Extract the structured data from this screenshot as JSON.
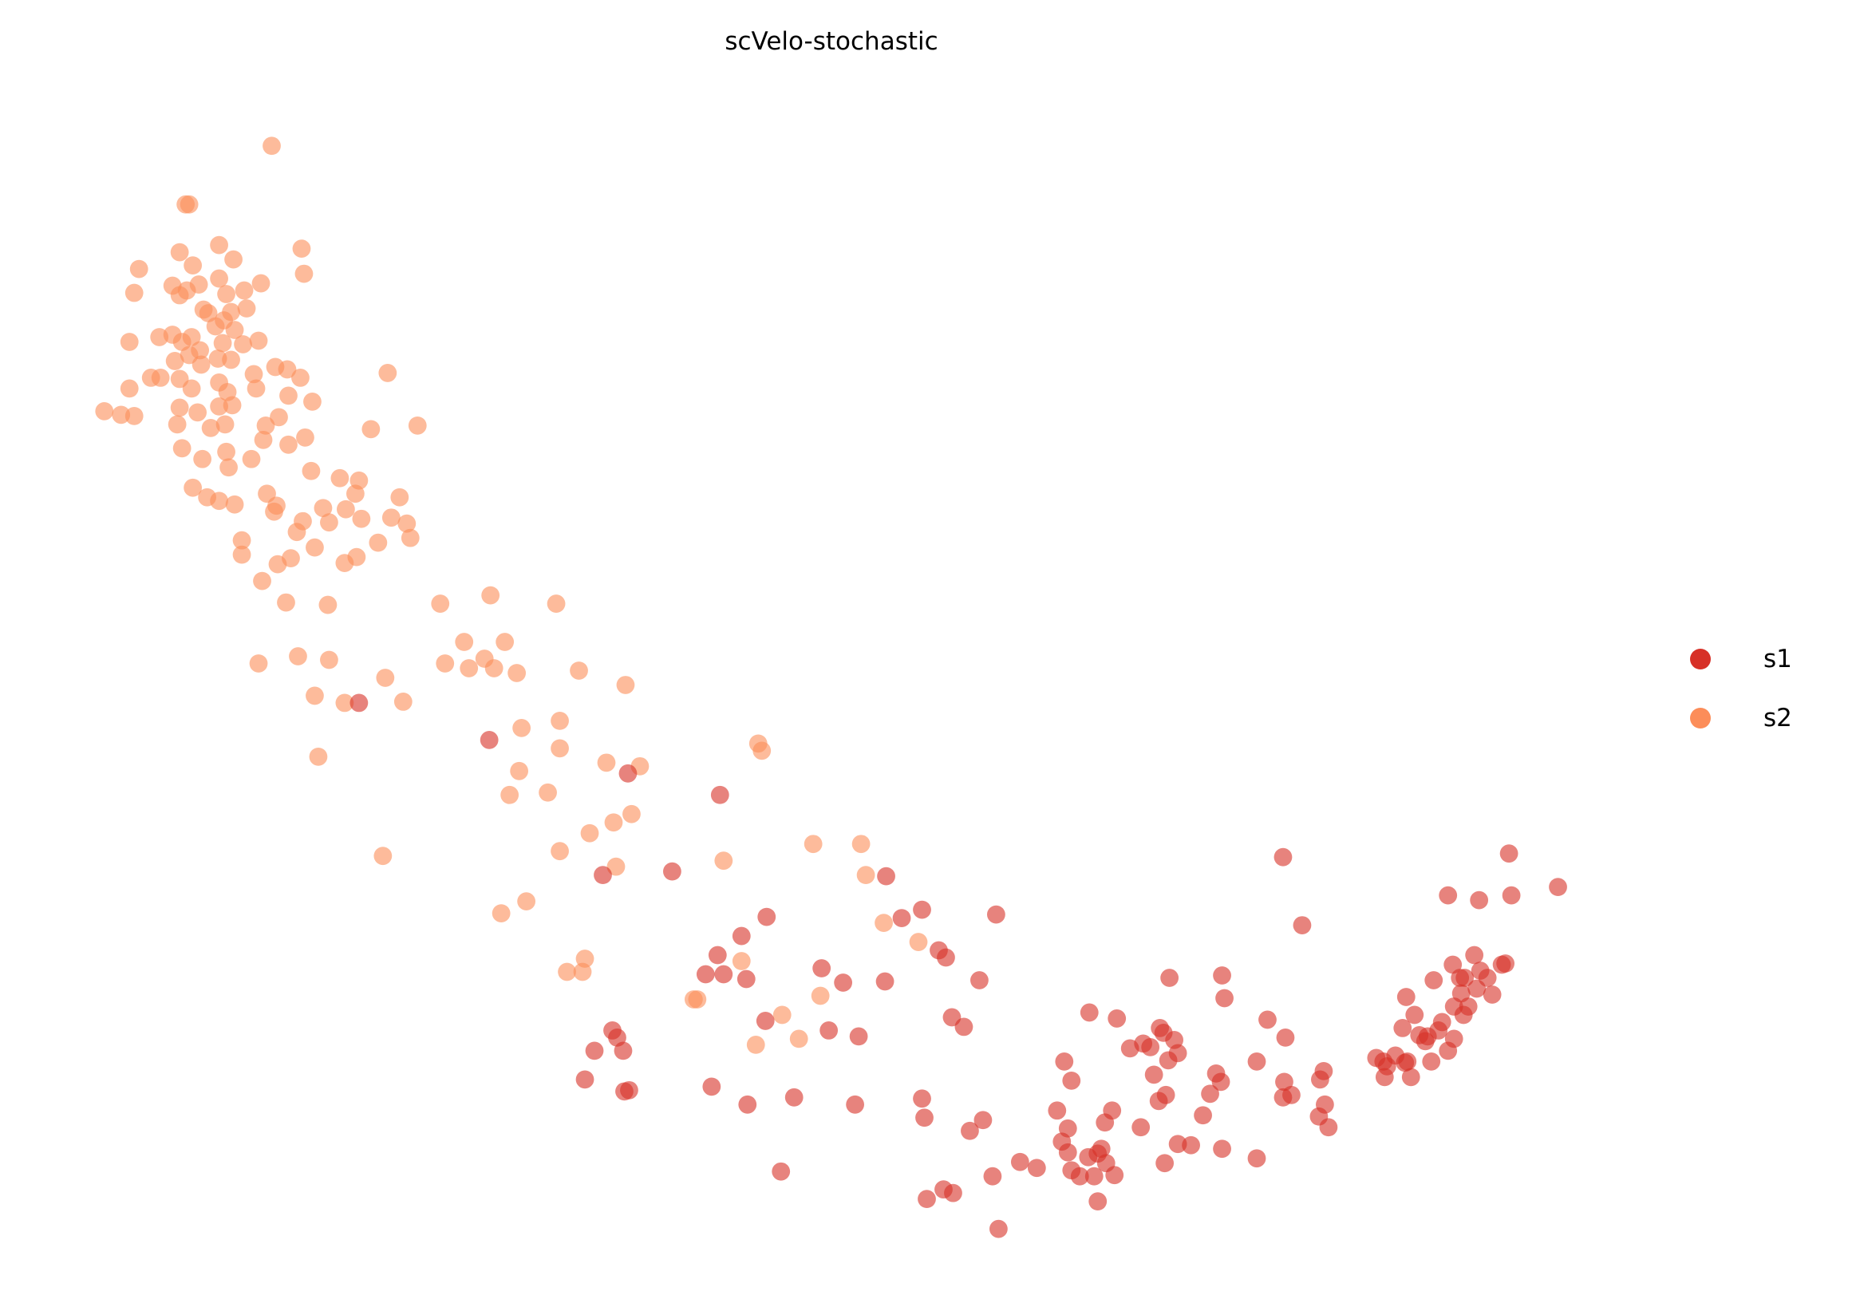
{
  "chart_data": {
    "type": "scatter",
    "title": "scVelo-stochastic",
    "xlabel": "",
    "ylabel": "",
    "grid": false,
    "axes_visible": false,
    "xlim": [
      0,
      15.52
    ],
    "ylim": [
      -10.9,
      0
    ],
    "legend": {
      "placement": "right",
      "entries": [
        "s1",
        "s2"
      ]
    },
    "series": [
      {
        "name": "s1",
        "color": "#d73027",
        "points": [
          [
            3.0,
            -5.88
          ],
          [
            4.09,
            -6.19
          ],
          [
            5.25,
            -6.47
          ],
          [
            6.02,
            -6.65
          ],
          [
            5.04,
            -7.32
          ],
          [
            5.62,
            -7.29
          ],
          [
            7.41,
            -7.33
          ],
          [
            7.54,
            -7.68
          ],
          [
            7.71,
            -7.61
          ],
          [
            8.33,
            -7.65
          ],
          [
            10.73,
            -7.17
          ],
          [
            10.89,
            -7.74
          ],
          [
            12.11,
            -7.49
          ],
          [
            12.37,
            -7.53
          ],
          [
            12.62,
            -7.14
          ],
          [
            12.64,
            -7.49
          ],
          [
            13.03,
            -7.42
          ],
          [
            6.2,
            -7.83
          ],
          [
            6.41,
            -7.67
          ],
          [
            6.0,
            -7.99
          ],
          [
            5.9,
            -8.15
          ],
          [
            6.05,
            -8.15
          ],
          [
            6.24,
            -8.19
          ],
          [
            6.87,
            -8.1
          ],
          [
            7.05,
            -8.22
          ],
          [
            7.4,
            -8.21
          ],
          [
            7.85,
            -7.95
          ],
          [
            7.91,
            -8.01
          ],
          [
            8.19,
            -8.2
          ],
          [
            6.4,
            -8.54
          ],
          [
            6.93,
            -8.62
          ],
          [
            7.18,
            -8.67
          ],
          [
            7.96,
            -8.51
          ],
          [
            8.06,
            -8.59
          ],
          [
            5.12,
            -8.62
          ],
          [
            5.16,
            -8.68
          ],
          [
            4.97,
            -8.79
          ],
          [
            5.21,
            -8.79
          ],
          [
            4.89,
            -9.03
          ],
          [
            5.22,
            -9.13
          ],
          [
            5.26,
            -9.12
          ],
          [
            5.95,
            -9.09
          ],
          [
            6.25,
            -9.24
          ],
          [
            6.64,
            -9.18
          ],
          [
            7.15,
            -9.24
          ],
          [
            7.71,
            -9.19
          ],
          [
            7.73,
            -9.35
          ],
          [
            8.11,
            -9.46
          ],
          [
            8.22,
            -9.37
          ],
          [
            6.53,
            -9.8
          ],
          [
            7.75,
            -10.03
          ],
          [
            7.89,
            -9.95
          ],
          [
            7.97,
            -9.98
          ],
          [
            8.3,
            -9.84
          ],
          [
            8.35,
            -10.28
          ],
          [
            8.53,
            -9.72
          ],
          [
            8.67,
            -9.77
          ],
          [
            8.84,
            -9.29
          ],
          [
            8.93,
            -9.44
          ],
          [
            8.9,
            -8.88
          ],
          [
            8.96,
            -9.04
          ],
          [
            8.88,
            -9.55
          ],
          [
            8.93,
            -9.64
          ],
          [
            8.96,
            -9.79
          ],
          [
            9.03,
            -9.84
          ],
          [
            9.1,
            -9.68
          ],
          [
            9.18,
            -9.65
          ],
          [
            9.21,
            -9.61
          ],
          [
            9.15,
            -9.84
          ],
          [
            9.25,
            -9.73
          ],
          [
            9.32,
            -9.83
          ],
          [
            9.18,
            -10.05
          ],
          [
            9.24,
            -9.39
          ],
          [
            9.3,
            -9.29
          ],
          [
            9.54,
            -9.43
          ],
          [
            9.11,
            -8.47
          ],
          [
            9.34,
            -8.52
          ],
          [
            9.45,
            -8.77
          ],
          [
            9.56,
            -8.73
          ],
          [
            9.62,
            -8.76
          ],
          [
            9.7,
            -8.6
          ],
          [
            9.73,
            -8.64
          ],
          [
            9.82,
            -8.7
          ],
          [
            9.77,
            -8.87
          ],
          [
            9.85,
            -8.81
          ],
          [
            9.65,
            -8.99
          ],
          [
            9.69,
            -9.21
          ],
          [
            9.75,
            -9.16
          ],
          [
            9.74,
            -9.73
          ],
          [
            9.85,
            -9.57
          ],
          [
            9.96,
            -9.58
          ],
          [
            10.06,
            -9.33
          ],
          [
            10.22,
            -9.61
          ],
          [
            9.78,
            -8.18
          ],
          [
            10.22,
            -8.16
          ],
          [
            10.24,
            -8.35
          ],
          [
            10.12,
            -9.15
          ],
          [
            10.17,
            -8.98
          ],
          [
            10.21,
            -9.05
          ],
          [
            10.51,
            -8.88
          ],
          [
            10.6,
            -8.53
          ],
          [
            10.75,
            -8.68
          ],
          [
            10.74,
            -9.05
          ],
          [
            10.73,
            -9.18
          ],
          [
            10.8,
            -9.16
          ],
          [
            11.04,
            -9.03
          ],
          [
            11.07,
            -8.96
          ],
          [
            11.03,
            -9.34
          ],
          [
            11.08,
            -9.24
          ],
          [
            11.11,
            -9.43
          ],
          [
            10.51,
            -9.69
          ],
          [
            11.51,
            -8.85
          ],
          [
            11.58,
            -9.01
          ],
          [
            11.6,
            -8.92
          ],
          [
            11.67,
            -8.83
          ],
          [
            11.75,
            -8.89
          ],
          [
            11.8,
            -9.01
          ],
          [
            11.77,
            -8.88
          ],
          [
            11.57,
            -8.88
          ],
          [
            11.73,
            -8.6
          ],
          [
            11.76,
            -8.34
          ],
          [
            11.83,
            -8.49
          ],
          [
            11.87,
            -8.66
          ],
          [
            11.94,
            -8.67
          ],
          [
            11.92,
            -8.71
          ],
          [
            11.97,
            -8.88
          ],
          [
            11.99,
            -8.2
          ],
          [
            12.03,
            -8.62
          ],
          [
            12.06,
            -8.55
          ],
          [
            12.11,
            -8.79
          ],
          [
            12.16,
            -8.69
          ],
          [
            12.16,
            -8.42
          ],
          [
            12.21,
            -8.18
          ],
          [
            12.24,
            -8.49
          ],
          [
            12.28,
            -8.42
          ],
          [
            12.25,
            -8.18
          ],
          [
            12.35,
            -8.27
          ],
          [
            12.15,
            -8.07
          ],
          [
            12.33,
            -7.99
          ],
          [
            12.38,
            -8.12
          ],
          [
            12.44,
            -8.18
          ],
          [
            12.48,
            -8.32
          ],
          [
            12.56,
            -8.07
          ],
          [
            12.59,
            -8.06
          ],
          [
            12.22,
            -8.31
          ]
        ]
      },
      {
        "name": "s2",
        "color": "#fc8d59",
        "points": [
          [
            2.27,
            -1.22
          ],
          [
            1.55,
            -1.71
          ],
          [
            1.58,
            -1.71
          ],
          [
            2.52,
            -2.08
          ],
          [
            2.54,
            -2.29
          ],
          [
            1.83,
            -2.05
          ],
          [
            1.95,
            -2.17
          ],
          [
            1.5,
            -2.11
          ],
          [
            1.16,
            -2.25
          ],
          [
            1.61,
            -2.22
          ],
          [
            1.12,
            -2.45
          ],
          [
            1.44,
            -2.39
          ],
          [
            1.5,
            -2.47
          ],
          [
            1.56,
            -2.43
          ],
          [
            1.66,
            -2.38
          ],
          [
            1.83,
            -2.33
          ],
          [
            1.89,
            -2.46
          ],
          [
            2.04,
            -2.43
          ],
          [
            2.18,
            -2.37
          ],
          [
            1.7,
            -2.59
          ],
          [
            1.74,
            -2.62
          ],
          [
            1.87,
            -2.68
          ],
          [
            1.93,
            -2.61
          ],
          [
            2.06,
            -2.58
          ],
          [
            1.8,
            -2.73
          ],
          [
            1.08,
            -2.86
          ],
          [
            1.33,
            -2.82
          ],
          [
            1.44,
            -2.8
          ],
          [
            1.52,
            -2.86
          ],
          [
            1.6,
            -2.82
          ],
          [
            1.67,
            -2.93
          ],
          [
            1.86,
            -2.87
          ],
          [
            1.96,
            -2.76
          ],
          [
            2.03,
            -2.88
          ],
          [
            2.16,
            -2.85
          ],
          [
            1.46,
            -3.02
          ],
          [
            1.58,
            -2.97
          ],
          [
            1.68,
            -3.05
          ],
          [
            1.82,
            -3.0
          ],
          [
            1.93,
            -3.01
          ],
          [
            2.12,
            -3.13
          ],
          [
            2.3,
            -3.07
          ],
          [
            2.4,
            -3.09
          ],
          [
            2.51,
            -3.16
          ],
          [
            1.26,
            -3.16
          ],
          [
            1.34,
            -3.16
          ],
          [
            1.08,
            -3.25
          ],
          [
            1.5,
            -3.17
          ],
          [
            1.6,
            -3.25
          ],
          [
            1.83,
            -3.2
          ],
          [
            1.9,
            -3.28
          ],
          [
            2.14,
            -3.25
          ],
          [
            0.87,
            -3.44
          ],
          [
            1.01,
            -3.47
          ],
          [
            1.12,
            -3.48
          ],
          [
            1.5,
            -3.41
          ],
          [
            1.65,
            -3.45
          ],
          [
            1.83,
            -3.4
          ],
          [
            1.94,
            -3.39
          ],
          [
            2.41,
            -3.31
          ],
          [
            2.61,
            -3.36
          ],
          [
            3.24,
            -3.12
          ],
          [
            1.48,
            -3.55
          ],
          [
            1.76,
            -3.58
          ],
          [
            1.88,
            -3.55
          ],
          [
            2.33,
            -3.49
          ],
          [
            2.22,
            -3.56
          ],
          [
            3.1,
            -3.59
          ],
          [
            3.49,
            -3.56
          ],
          [
            1.52,
            -3.75
          ],
          [
            1.69,
            -3.84
          ],
          [
            1.89,
            -3.78
          ],
          [
            2.1,
            -3.84
          ],
          [
            2.2,
            -3.68
          ],
          [
            2.41,
            -3.72
          ],
          [
            2.55,
            -3.66
          ],
          [
            1.91,
            -3.91
          ],
          [
            1.61,
            -4.08
          ],
          [
            1.73,
            -4.16
          ],
          [
            1.83,
            -4.19
          ],
          [
            1.96,
            -4.22
          ],
          [
            2.23,
            -4.13
          ],
          [
            2.31,
            -4.23
          ],
          [
            2.29,
            -4.28
          ],
          [
            2.6,
            -3.94
          ],
          [
            2.84,
            -4.0
          ],
          [
            3.0,
            -4.02
          ],
          [
            2.97,
            -4.13
          ],
          [
            3.34,
            -4.16
          ],
          [
            3.27,
            -4.33
          ],
          [
            3.4,
            -4.38
          ],
          [
            3.43,
            -4.5
          ],
          [
            2.48,
            -4.45
          ],
          [
            2.53,
            -4.36
          ],
          [
            2.7,
            -4.25
          ],
          [
            2.75,
            -4.37
          ],
          [
            2.89,
            -4.26
          ],
          [
            3.02,
            -4.34
          ],
          [
            2.02,
            -4.52
          ],
          [
            2.02,
            -4.64
          ],
          [
            2.43,
            -4.67
          ],
          [
            2.63,
            -4.58
          ],
          [
            2.32,
            -4.72
          ],
          [
            2.98,
            -4.66
          ],
          [
            2.88,
            -4.71
          ],
          [
            3.16,
            -4.54
          ],
          [
            2.19,
            -4.86
          ],
          [
            2.39,
            -5.04
          ],
          [
            2.74,
            -5.06
          ],
          [
            3.68,
            -5.05
          ],
          [
            4.1,
            -4.98
          ],
          [
            4.65,
            -5.05
          ],
          [
            2.16,
            -5.55
          ],
          [
            2.49,
            -5.49
          ],
          [
            2.75,
            -5.52
          ],
          [
            3.88,
            -5.37
          ],
          [
            4.22,
            -5.37
          ],
          [
            3.72,
            -5.55
          ],
          [
            3.92,
            -5.59
          ],
          [
            4.05,
            -5.51
          ],
          [
            4.13,
            -5.59
          ],
          [
            4.32,
            -5.63
          ],
          [
            4.84,
            -5.61
          ],
          [
            5.23,
            -5.73
          ],
          [
            2.63,
            -5.82
          ],
          [
            2.88,
            -5.88
          ],
          [
            3.22,
            -5.67
          ],
          [
            3.37,
            -5.87
          ],
          [
            2.66,
            -6.33
          ],
          [
            4.36,
            -6.09
          ],
          [
            4.68,
            -6.03
          ],
          [
            4.68,
            -6.26
          ],
          [
            4.34,
            -6.45
          ],
          [
            4.26,
            -6.65
          ],
          [
            4.58,
            -6.63
          ],
          [
            5.07,
            -6.38
          ],
          [
            5.35,
            -6.41
          ],
          [
            6.34,
            -6.22
          ],
          [
            6.37,
            -6.28
          ],
          [
            5.13,
            -6.88
          ],
          [
            5.28,
            -6.81
          ],
          [
            4.93,
            -6.97
          ],
          [
            4.68,
            -7.12
          ],
          [
            5.15,
            -7.25
          ],
          [
            3.2,
            -7.16
          ],
          [
            6.05,
            -7.2
          ],
          [
            6.8,
            -7.06
          ],
          [
            7.2,
            -7.06
          ],
          [
            7.24,
            -7.32
          ],
          [
            4.4,
            -7.54
          ],
          [
            4.19,
            -7.64
          ],
          [
            7.39,
            -7.72
          ],
          [
            7.68,
            -7.88
          ],
          [
            4.74,
            -8.13
          ],
          [
            4.89,
            -8.02
          ],
          [
            4.87,
            -8.13
          ],
          [
            6.2,
            -8.04
          ],
          [
            5.8,
            -8.36
          ],
          [
            5.83,
            -8.36
          ],
          [
            6.86,
            -8.33
          ],
          [
            6.54,
            -8.49
          ],
          [
            6.32,
            -8.74
          ],
          [
            6.68,
            -8.69
          ]
        ]
      }
    ]
  }
}
